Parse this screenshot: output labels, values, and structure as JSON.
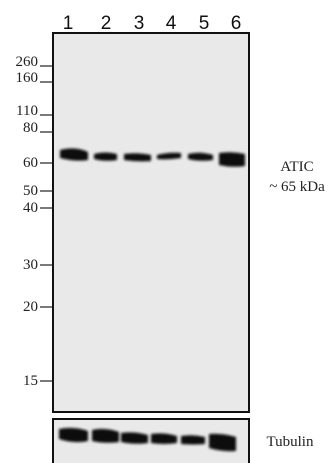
{
  "lanes": [
    "1",
    "2",
    "3",
    "4",
    "5",
    "6"
  ],
  "markers": [
    260,
    160,
    110,
    80,
    60,
    50,
    40,
    30,
    20,
    15
  ],
  "protein": {
    "name": "ATIC",
    "size": "~ 65 kDa"
  },
  "loading_control": "Tubulin"
}
